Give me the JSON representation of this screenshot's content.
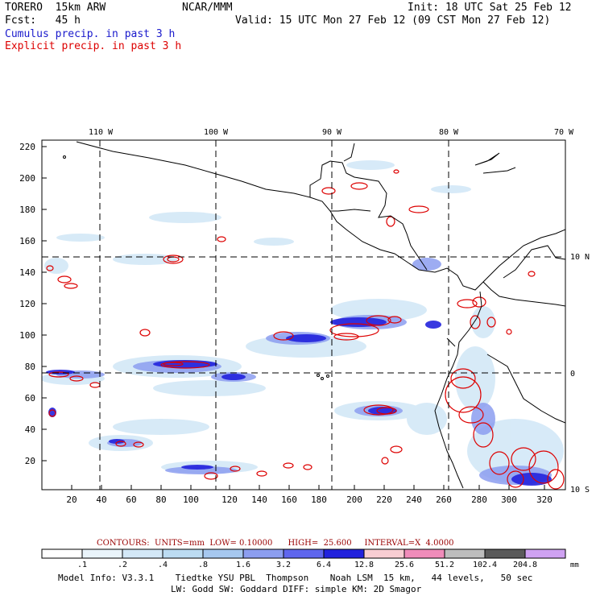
{
  "header": {
    "model": "TORERO  15km ARW",
    "org": "NCAR/MMM",
    "init": "Init: 18 UTC Sat 25 Feb 12",
    "fcst": "Fcst:   45 h",
    "valid": "Valid: 15 UTC Mon 27 Feb 12 (09 CST Mon 27 Feb 12)",
    "legend_cumulus": "Cumulus precip. in past 3 h",
    "legend_explicit": "Explicit precip. in past 3 h"
  },
  "colors": {
    "cumulus": "#1a1acc",
    "explicit": "#dd0000",
    "contour_label": "#990000"
  },
  "map": {
    "lon_labels": [
      "110 W",
      "100 W",
      "90 W",
      "80 W",
      "70 W"
    ],
    "lat_labels": [
      "10 N",
      "0",
      "10 S"
    ],
    "y_ticks": [
      "220",
      "200",
      "180",
      "160",
      "140",
      "120",
      "100",
      "80",
      "60",
      "40",
      "20"
    ],
    "x_ticks": [
      "20",
      "40",
      "60",
      "80",
      "100",
      "120",
      "140",
      "160",
      "180",
      "200",
      "220",
      "240",
      "260",
      "280",
      "300",
      "320"
    ]
  },
  "contours": {
    "line": "CONTOURS:  UNITS=mm  LOW= 0.10000      HIGH=  25.600     INTERVAL=X  4.0000"
  },
  "colorbar": {
    "unit": "mm",
    "labels": [
      ".1",
      ".2",
      ".4",
      ".8",
      "1.6",
      "3.2",
      "6.4",
      "12.8",
      "25.6",
      "51.2",
      "102.4",
      "204.8"
    ],
    "colors": [
      "#ffffff",
      "#eaf4fb",
      "#d3e8f7",
      "#bcdcf2",
      "#a6c8ef",
      "#8c9ef0",
      "#5f66ee",
      "#2222dd",
      "#f8cdd2",
      "#f08cba",
      "#bdbdbd",
      "#5a5a5a",
      "#cfa2f2"
    ]
  },
  "footer": {
    "line1": "Model Info: V3.3.1    Tiedtke YSU PBL  Thompson    Noah LSM  15 km,   44 levels,   50 sec",
    "line2": "LW: Godd SW: Goddard DIFF: simple KM: 2D Smagor"
  }
}
